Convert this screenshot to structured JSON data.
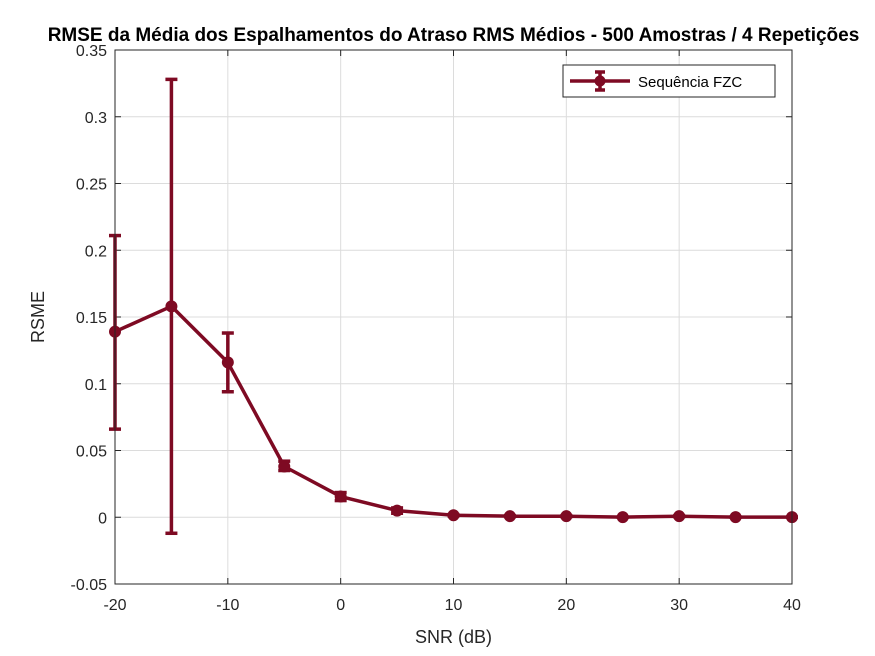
{
  "chart_data": {
    "type": "line",
    "title": "RMSE da Média dos Espalhamentos do Atraso RMS Médios - 500 Amostras / 4 Repetições",
    "xlabel": "SNR (dB)",
    "ylabel": "RSME",
    "xlim": [
      -20,
      40
    ],
    "ylim": [
      -0.05,
      0.35
    ],
    "x_ticks": [
      -20,
      -10,
      0,
      10,
      20,
      30,
      40
    ],
    "x_tick_labels": [
      "-20",
      "-10",
      "0",
      "10",
      "20",
      "30",
      "40"
    ],
    "y_ticks": [
      -0.05,
      0,
      0.05,
      0.1,
      0.15,
      0.2,
      0.25,
      0.3,
      0.35
    ],
    "y_tick_labels": [
      "-0.05",
      "0",
      "0.05",
      "0.1",
      "0.15",
      "0.2",
      "0.25",
      "0.3",
      "0.35"
    ],
    "grid": true,
    "legend_position": "top-right",
    "series": [
      {
        "name": "Sequência FZC",
        "color": "#7E0A23",
        "marker": "circle",
        "x": [
          -20,
          -15,
          -10,
          -5,
          0,
          5,
          10,
          15,
          20,
          25,
          30,
          35,
          40
        ],
        "y": [
          0.139,
          0.158,
          0.116,
          0.038,
          0.0155,
          0.005,
          0.0015,
          0.0008,
          0.0008,
          0.0001,
          0.0008,
          0.0001,
          0.0001
        ],
        "err_lower": [
          0.066,
          -0.012,
          0.094,
          0.035,
          0.0125,
          0.003,
          0.001,
          0.0004,
          0.0004,
          0.0,
          0.0004,
          0.0,
          0.0
        ],
        "err_upper": [
          0.211,
          0.328,
          0.138,
          0.042,
          0.0185,
          0.007,
          0.002,
          0.0012,
          0.0012,
          0.0002,
          0.0012,
          0.0002,
          0.0002
        ]
      }
    ]
  }
}
